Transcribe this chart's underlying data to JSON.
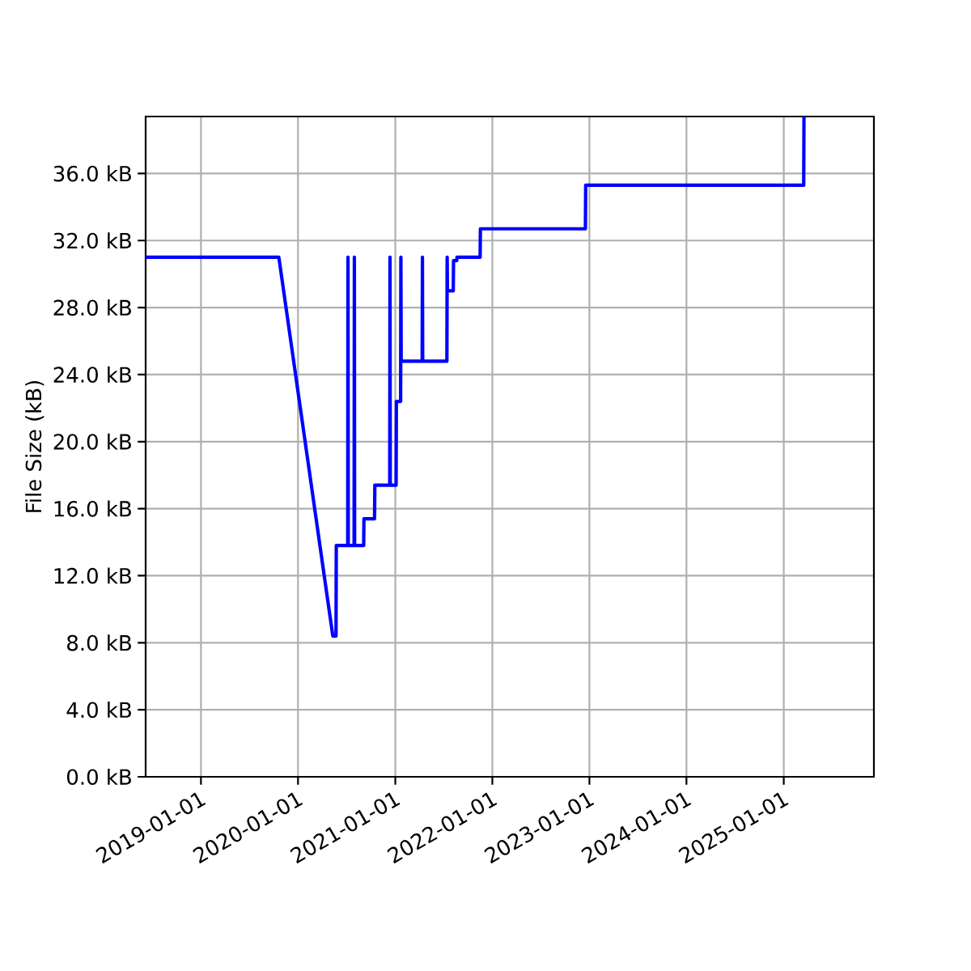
{
  "chart_data": {
    "type": "line",
    "ylabel": "File Size (kB)",
    "color": "#0000ff",
    "line_style": "solid",
    "grid": true,
    "x": [
      "2018-06-07",
      "2019-10-21",
      "2020-05-11",
      "2020-05-23",
      "2020-05-24",
      "2020-07-06",
      "2020-07-07",
      "2020-07-08",
      "2020-07-30",
      "2020-07-31",
      "2020-08-01",
      "2020-09-04",
      "2020-09-05",
      "2020-10-15",
      "2020-10-16",
      "2020-12-11",
      "2020-12-12",
      "2020-12-13",
      "2021-01-04",
      "2021-01-05",
      "2021-01-21",
      "2021-01-22",
      "2021-01-23",
      "2021-04-12",
      "2021-04-13",
      "2021-04-14",
      "2021-07-14",
      "2021-07-15",
      "2021-07-16",
      "2021-08-07",
      "2021-08-08",
      "2021-08-20",
      "2021-08-21",
      "2021-11-16",
      "2021-11-17",
      "2022-12-17",
      "2022-12-18",
      "2025-03-17",
      "2025-03-18"
    ],
    "values": [
      31.0,
      31.0,
      8.4,
      8.4,
      13.8,
      13.8,
      31.0,
      13.8,
      13.8,
      31.0,
      13.8,
      13.8,
      15.4,
      15.4,
      17.4,
      17.4,
      31.0,
      17.4,
      17.4,
      22.4,
      22.4,
      31.0,
      24.8,
      24.8,
      31.0,
      24.8,
      24.8,
      31.0,
      29.0,
      29.0,
      30.8,
      30.8,
      31.0,
      31.0,
      32.7,
      32.7,
      35.3,
      35.3,
      39.4
    ],
    "xlim": [
      "2018-06-07",
      "2025-12-06"
    ],
    "xticks": [
      "2019-01-01",
      "2020-01-01",
      "2021-01-01",
      "2022-01-01",
      "2023-01-01",
      "2024-01-01",
      "2025-01-01"
    ],
    "ylim": [
      0,
      39.4
    ],
    "yticks": [
      {
        "value": 0,
        "label": "0.0 kB"
      },
      {
        "value": 4,
        "label": "4.0 kB"
      },
      {
        "value": 8,
        "label": "8.0 kB"
      },
      {
        "value": 12,
        "label": "12.0 kB"
      },
      {
        "value": 16,
        "label": "16.0 kB"
      },
      {
        "value": 20,
        "label": "20.0 kB"
      },
      {
        "value": 24,
        "label": "24.0 kB"
      },
      {
        "value": 28,
        "label": "28.0 kB"
      },
      {
        "value": 32,
        "label": "32.0 kB"
      },
      {
        "value": 36,
        "label": "36.0 kB"
      }
    ]
  }
}
